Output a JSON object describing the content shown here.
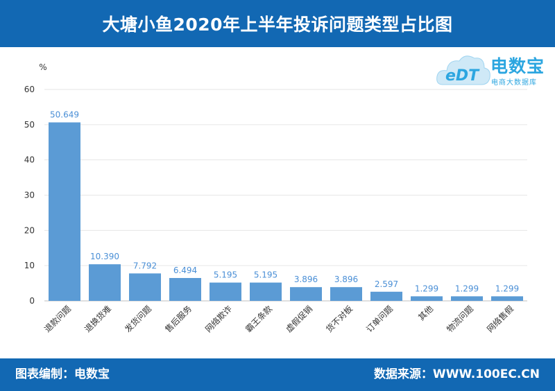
{
  "header": {
    "title": "大塘小鱼2020年上半年投诉问题类型占比图"
  },
  "logo": {
    "name": "电数宝",
    "subtitle": "电商大数据库",
    "badge": "eDT"
  },
  "footer": {
    "left": "图表编制：电数宝",
    "right": "数据来源：WWW.100EC.CN"
  },
  "colors": {
    "bar": "#5b9bd5",
    "header": "#1268b3",
    "label": "#4a8fd6"
  },
  "chart_data": {
    "type": "bar",
    "ylabel": "%",
    "ylim": [
      0,
      60
    ],
    "yticks": [
      0,
      10,
      20,
      30,
      40,
      50,
      60
    ],
    "categories": [
      "退款问题",
      "退换货难",
      "发货问题",
      "售后服务",
      "网络欺诈",
      "霸王条款",
      "虚假促销",
      "货不对板",
      "订单问题",
      "其他",
      "物流问题",
      "网络售假"
    ],
    "values": [
      50.649,
      10.39,
      7.792,
      6.494,
      5.195,
      5.195,
      3.896,
      3.896,
      2.597,
      1.299,
      1.299,
      1.299
    ],
    "value_labels": [
      "50.649",
      "10.390",
      "7.792",
      "6.494",
      "5.195",
      "5.195",
      "3.896",
      "3.896",
      "2.597",
      "1.299",
      "1.299",
      "1.299"
    ],
    "grid": true,
    "legend": "none"
  }
}
